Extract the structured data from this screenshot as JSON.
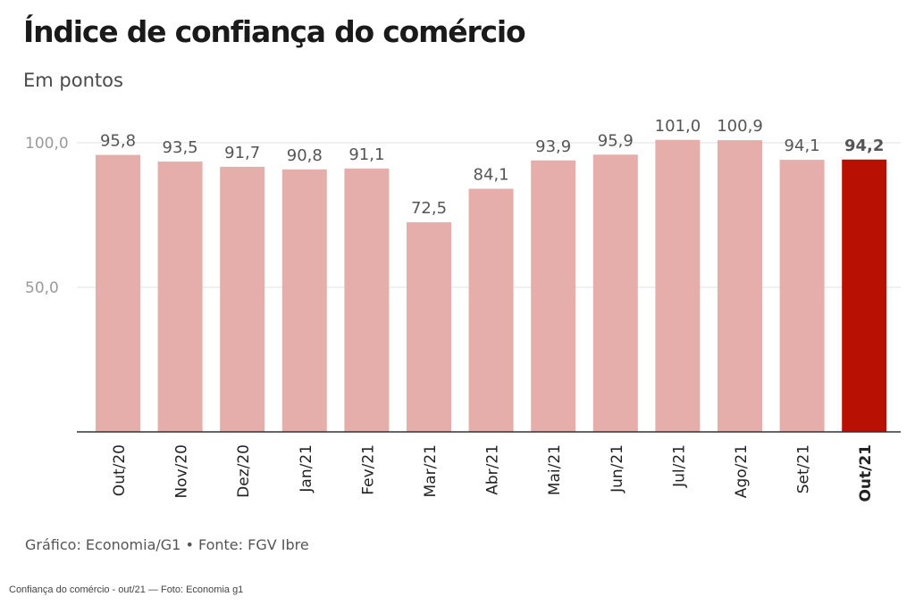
{
  "title": "Índice de confiança do comércio",
  "subtitle": "Em pontos",
  "source": "Gráfico: Economia/G1 • Fonte: FGV Ibre",
  "caption": "Confiança do comércio - out/21 — Foto: Economia g1",
  "colors": {
    "bar": "#e5aeaa",
    "highlight": "#b81104",
    "grid": "#e2e2e2",
    "axis": "#333333",
    "tick_label": "#9a9a9a",
    "value_label": "#555555"
  },
  "chart_data": {
    "type": "bar",
    "categories": [
      "Out/20",
      "Nov/20",
      "Dez/20",
      "Jan/21",
      "Fev/21",
      "Mar/21",
      "Abr/21",
      "Mai/21",
      "Jun/21",
      "Jul/21",
      "Ago/21",
      "Set/21",
      "Out/21"
    ],
    "values": [
      95.8,
      93.5,
      91.7,
      90.8,
      91.1,
      72.5,
      84.1,
      93.9,
      95.9,
      101.0,
      100.9,
      94.1,
      94.2
    ],
    "value_labels": [
      "95,8",
      "93,5",
      "91,7",
      "90,8",
      "91,1",
      "72,5",
      "84,1",
      "93,9",
      "95,9",
      "101,0",
      "100,9",
      "94,1",
      "94,2"
    ],
    "highlight_index": 12,
    "yticks": [
      50,
      100
    ],
    "ytick_labels": [
      "50,0",
      "100,0"
    ],
    "ylim": [
      0,
      101
    ],
    "grid": true,
    "title": "Índice de confiança do comércio",
    "subtitle": "Em pontos"
  }
}
